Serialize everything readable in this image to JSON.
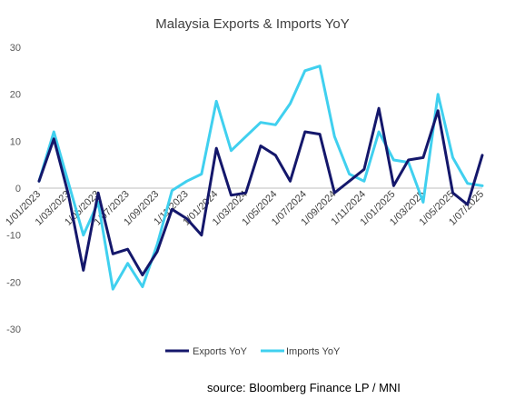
{
  "chart_data": {
    "type": "line",
    "title": "Malaysia Exports & Imports YoY",
    "xlabel": "",
    "ylabel": "",
    "ylim": [
      -30,
      30
    ],
    "yticks": [
      30,
      20,
      10,
      0,
      -10,
      -20,
      -30
    ],
    "x": [
      "1/01/2023",
      "1/02/2023",
      "1/03/2023",
      "1/04/2023",
      "1/05/2023",
      "1/06/2023",
      "1/07/2023",
      "1/08/2023",
      "1/09/2023",
      "1/10/2023",
      "1/11/2023",
      "1/12/2023",
      "1/01/2024",
      "1/02/2024",
      "1/03/2024",
      "1/04/2024",
      "1/05/2024",
      "1/06/2024",
      "1/07/2024",
      "1/08/2024",
      "1/09/2024",
      "1/10/2024",
      "1/11/2024",
      "1/12/2024",
      "1/01/2025",
      "1/02/2025",
      "1/03/2025",
      "1/04/2025",
      "1/05/2025",
      "1/06/2025",
      "1/07/2025"
    ],
    "xtick_labels": [
      "1/01/2023",
      "1/03/2023",
      "1/05/2023",
      "1/07/2023",
      "1/09/2023",
      "1/11/2023",
      "1/01/2024",
      "1/03/2024",
      "1/05/2024",
      "1/07/2024",
      "1/09/2024",
      "1/11/2024",
      "1/01/2025",
      "1/03/2025",
      "1/05/2025",
      "1/07/2025"
    ],
    "series": [
      {
        "name": "Exports YoY",
        "color": "#14176b",
        "values": [
          1.5,
          10.5,
          -1.5,
          -17.5,
          -1.0,
          -14.0,
          -13.0,
          -18.5,
          -13.5,
          -4.5,
          -6.5,
          -10.0,
          8.5,
          -1.5,
          -1.0,
          9.0,
          7.0,
          1.5,
          12.0,
          11.5,
          -1.0,
          1.5,
          4.0,
          17.0,
          0.5,
          6.0,
          6.5,
          16.5,
          -1.0,
          -3.5,
          7.0
        ]
      },
      {
        "name": "Imports YoY",
        "color": "#40d0ef",
        "values": [
          1.5,
          12.0,
          1.0,
          -10.0,
          -3.0,
          -21.5,
          -16.0,
          -21.0,
          -12.0,
          -0.5,
          1.5,
          3.0,
          18.5,
          8.0,
          11.0,
          14.0,
          13.5,
          18.0,
          25.0,
          26.0,
          11.0,
          3.0,
          1.5,
          12.0,
          6.0,
          5.5,
          -3.0,
          20.0,
          6.5,
          1.0,
          0.5
        ]
      }
    ],
    "grid": false,
    "legend_position": "bottom"
  },
  "source": "source: Bloomberg Finance LP / MNI"
}
